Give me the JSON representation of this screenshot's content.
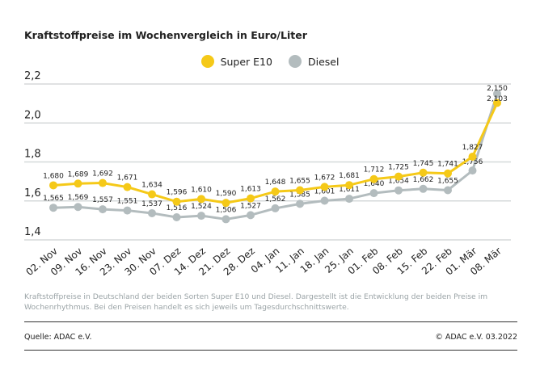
{
  "chart_data": {
    "type": "line",
    "title": "Kraftstoffpreise im Wochenvergleich in Euro/Liter",
    "categories": [
      "02. Nov",
      "09. Nov",
      "16. Nov",
      "23. Nov",
      "30. Nov",
      "07. Dez",
      "14. Dez",
      "21. Dez",
      "28. Dez",
      "04. Jan",
      "11. Jan",
      "18. Jan",
      "25. Jan",
      "01. Feb",
      "08. Feb",
      "15. Feb",
      "22. Feb",
      "01. Mär",
      "08. Mär"
    ],
    "series": [
      {
        "name": "Super E10",
        "color": "#f5c918",
        "values": [
          1.68,
          1.689,
          1.692,
          1.671,
          1.634,
          1.596,
          1.61,
          1.59,
          1.613,
          1.648,
          1.655,
          1.672,
          1.681,
          1.712,
          1.725,
          1.745,
          1.741,
          1.827,
          2.103
        ]
      },
      {
        "name": "Diesel",
        "color": "#b3bcbe",
        "values": [
          1.565,
          1.569,
          1.557,
          1.551,
          1.537,
          1.516,
          1.524,
          1.506,
          1.527,
          1.562,
          1.585,
          1.601,
          1.611,
          1.64,
          1.654,
          1.662,
          1.655,
          1.756,
          2.15
        ]
      }
    ],
    "yticks": [
      "1,4",
      "1,6",
      "1,8",
      "2,0",
      "2,2"
    ],
    "ylim": [
      1.4,
      2.2
    ],
    "grid": true,
    "legend": "top-center"
  },
  "note": "Kraftstoffpreise in Deutschland der beiden Sorten Super E10 und Diesel. Dargestellt ist die Entwicklung der beiden Preise im Wochenrhythmus. Bei den Preisen handelt es sich jeweils um Tagesdurchschnittswerte.",
  "source": "Quelle: ADAC e.V.",
  "copyright": "© ADAC e.V. 03.2022"
}
